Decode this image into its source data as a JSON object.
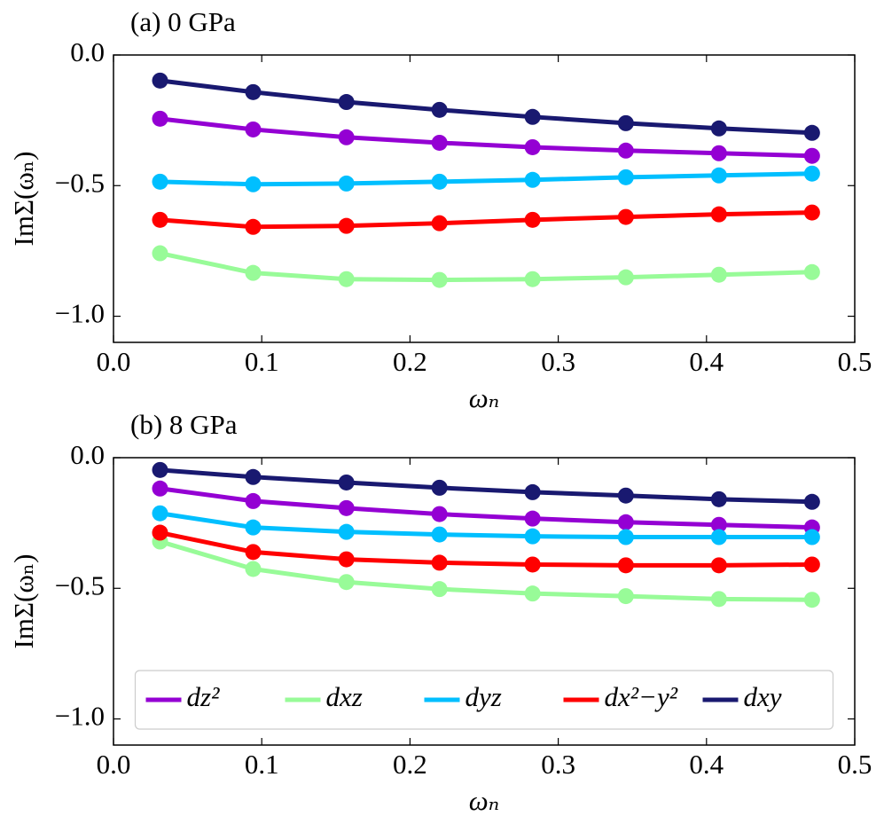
{
  "chart_data": [
    {
      "type": "line",
      "title": "(a) 0 GPa",
      "x_label": "ωₙ",
      "y_label": "ImΣ(ωₙ)",
      "x": [
        0.0314,
        0.0942,
        0.1571,
        0.2199,
        0.2827,
        0.3456,
        0.4084,
        0.4712
      ],
      "xlim": [
        0,
        0.5
      ],
      "ylim": [
        -1.1,
        0
      ],
      "xticks": [
        {
          "value": 0,
          "label": "0.0"
        },
        0.1,
        0.2,
        0.3,
        0.4,
        0.5
      ],
      "yticks": [
        {
          "value": 0,
          "label": "0.0"
        },
        {
          "value": -0.5,
          "label": "−0.5"
        },
        {
          "value": -1,
          "label": "−1.0"
        }
      ],
      "series": [
        {
          "color": "#9400d3",
          "values": [
            -0.244,
            -0.285,
            -0.315,
            -0.336,
            -0.353,
            -0.366,
            -0.376,
            -0.386
          ]
        },
        {
          "color": "#98fb98",
          "values": [
            -0.759,
            -0.834,
            -0.858,
            -0.861,
            -0.858,
            -0.851,
            -0.841,
            -0.831
          ]
        },
        {
          "color": "#00bfff",
          "values": [
            -0.485,
            -0.495,
            -0.492,
            -0.485,
            -0.478,
            -0.468,
            -0.461,
            -0.454
          ]
        },
        {
          "color": "#ff0000",
          "values": [
            -0.631,
            -0.658,
            -0.654,
            -0.644,
            -0.631,
            -0.62,
            -0.61,
            -0.603
          ]
        },
        {
          "color": "#191970",
          "values": [
            -0.098,
            -0.142,
            -0.18,
            -0.21,
            -0.237,
            -0.261,
            -0.281,
            -0.298
          ]
        }
      ]
    },
    {
      "type": "line",
      "title": "(b) 8 GPa",
      "x_label": "ωₙ",
      "y_label": "ImΣ(ωₙ)",
      "x": [
        0.0314,
        0.0942,
        0.1571,
        0.2199,
        0.2827,
        0.3456,
        0.4084,
        0.4712
      ],
      "xlim": [
        0,
        0.5
      ],
      "ylim": [
        -1.1,
        0
      ],
      "xticks": [
        {
          "value": 0,
          "label": "0.0"
        },
        0.1,
        0.2,
        0.3,
        0.4,
        0.5
      ],
      "yticks": [
        {
          "value": 0,
          "label": "0.0"
        },
        {
          "value": -0.5,
          "label": "−0.5"
        },
        {
          "value": -1,
          "label": "−1.0"
        }
      ],
      "legend": "lower center",
      "series": [
        {
          "name": "dz²",
          "color": "#9400d3",
          "values": [
            -0.118,
            -0.166,
            -0.193,
            -0.216,
            -0.233,
            -0.247,
            -0.257,
            -0.267
          ]
        },
        {
          "name": "dxz",
          "color": "#98fb98",
          "values": [
            -0.321,
            -0.426,
            -0.476,
            -0.503,
            -0.52,
            -0.53,
            -0.541,
            -0.544
          ]
        },
        {
          "name": "dyz",
          "color": "#00bfff",
          "values": [
            -0.213,
            -0.267,
            -0.284,
            -0.294,
            -0.301,
            -0.304,
            -0.304,
            -0.304
          ]
        },
        {
          "name": "dx²−y²",
          "color": "#ff0000",
          "values": [
            -0.287,
            -0.361,
            -0.389,
            -0.402,
            -0.409,
            -0.412,
            -0.412,
            -0.409
          ]
        },
        {
          "name": "dxy",
          "color": "#191970",
          "values": [
            -0.047,
            -0.074,
            -0.095,
            -0.115,
            -0.132,
            -0.145,
            -0.159,
            -0.169
          ]
        }
      ]
    }
  ]
}
